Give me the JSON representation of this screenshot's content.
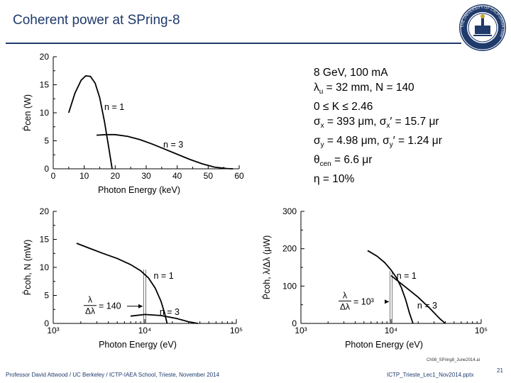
{
  "slide": {
    "title": "Coherent power at SPring-8",
    "footer_left": "Professor David Attwood / UC Berkeley / ICTP-IAEA School, Trieste, November 2014",
    "footer_right": "ICTP_Trieste_Lec1_Nov2014.pptx",
    "page_number": "21",
    "file_note": "Ch08_SPring8_June2014.ai",
    "seal_text": "THE UNIVERSITY OF CALIFORNIA 1868",
    "brand_color": "#1f3a6b"
  },
  "params": [
    "8 GeV, 100 mA",
    "λu = 32 mm, N = 140",
    "0 ≤ K ≤ 2.46",
    "σx = 393 μm, σx′ = 15.7 μr",
    "σy = 4.98 μm, σy′ = 1.24 μr",
    "θcen = 6.6 μr",
    "η = 10%"
  ],
  "chart_data": [
    {
      "type": "line",
      "id": "pcen",
      "xlabel": "Photon Energy (keV)",
      "ylabel": "P̄cen (W)",
      "xlim": [
        0,
        60
      ],
      "ylim": [
        0,
        20
      ],
      "xticks": [
        "0",
        "10",
        "20",
        "30",
        "40",
        "50",
        "60"
      ],
      "yticks": [
        "0",
        "5",
        "10",
        "15",
        "20"
      ],
      "series": [
        {
          "name": "n = 1",
          "x": [
            5,
            7,
            9,
            10.5,
            12,
            13.5,
            15,
            16.5,
            18,
            19
          ],
          "y": [
            10,
            13.5,
            15.8,
            16.6,
            16.5,
            15.3,
            12.7,
            8.5,
            3.5,
            0
          ]
        },
        {
          "name": "n = 3",
          "x": [
            14,
            17,
            20,
            24,
            28,
            32,
            36,
            40,
            44,
            48,
            52,
            56,
            58
          ],
          "y": [
            6,
            6.1,
            6.1,
            5.8,
            5.2,
            4.4,
            3.5,
            2.6,
            1.7,
            0.9,
            0.3,
            0.05,
            0
          ]
        }
      ],
      "labels": [
        {
          "text": "n = 1",
          "x": 16.5,
          "y": 10.5
        },
        {
          "text": "n = 3",
          "x": 35.5,
          "y": 3.8
        }
      ]
    },
    {
      "type": "line",
      "id": "pcohN",
      "xscale": "log",
      "xlabel": "Photon Energy (eV)",
      "ylabel": "P̄coh, N (mW)",
      "xlim": [
        1000,
        100000
      ],
      "ylim": [
        0,
        20
      ],
      "xticks": [
        "10³",
        "10⁴",
        "10⁵"
      ],
      "yticks": [
        "0",
        "5",
        "10",
        "15",
        "20"
      ],
      "series": [
        {
          "name": "n = 1",
          "x": [
            1800,
            2500,
            3500,
            5000,
            7000,
            9000,
            11000,
            13000,
            15000,
            16500,
            17500
          ],
          "y": [
            14.3,
            13.4,
            12.5,
            11.6,
            10.5,
            9.4,
            8.1,
            6.3,
            4,
            1.8,
            0
          ]
        },
        {
          "name": "n = 3",
          "x": [
            7000,
            10000,
            15000,
            22000,
            30000,
            38000
          ],
          "y": [
            1.3,
            1.6,
            1.4,
            0.9,
            0.3,
            0
          ]
        }
      ],
      "marker_x": 10000,
      "labels": [
        {
          "text": "n = 1",
          "x": 12500,
          "y": 8
        },
        {
          "text": "n = 3",
          "x": 14500,
          "y": 1.5
        }
      ],
      "annotation": {
        "numerator": "λ",
        "denominator": "Δλ",
        "rhs": "= 140"
      }
    },
    {
      "type": "line",
      "id": "pcohLambda",
      "xscale": "log",
      "xlabel": "Photon Energy (eV)",
      "ylabel": "P̄coh, λ/Δλ (μW)",
      "xlim": [
        1000,
        100000
      ],
      "ylim": [
        0,
        300
      ],
      "xticks": [
        "10³",
        "10⁴",
        "10⁵"
      ],
      "yticks": [
        "0",
        "100",
        "200",
        "300"
      ],
      "series": [
        {
          "name": "n = 1",
          "x": [
            5500,
            7000,
            8500,
            10000,
            11500,
            13000,
            14500,
            16000,
            17500
          ],
          "y": [
            195,
            180,
            163,
            143,
            122,
            96,
            64,
            28,
            0
          ]
        },
        {
          "name": "n = 3",
          "x": [
            10000,
            14000,
            20000,
            27000,
            35000,
            40000
          ],
          "y": [
            128,
            100,
            70,
            40,
            12,
            0
          ]
        }
      ],
      "marker_x": 10000,
      "labels": [
        {
          "text": "n = 1",
          "x": 11500,
          "y": 120
        },
        {
          "text": "n = 3",
          "x": 19500,
          "y": 40
        }
      ],
      "annotation": {
        "numerator": "λ",
        "denominator": "Δλ",
        "rhs": "= 10³"
      }
    }
  ]
}
